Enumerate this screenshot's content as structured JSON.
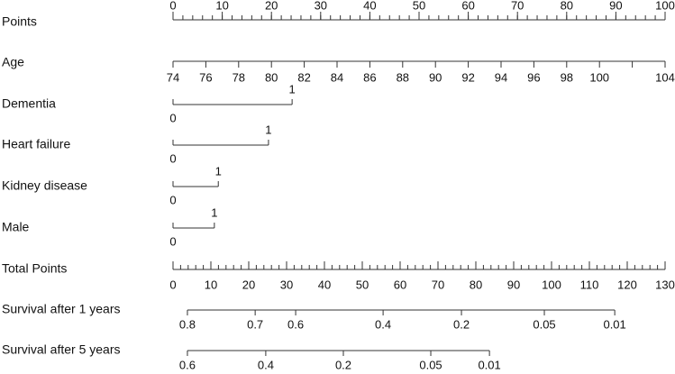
{
  "chart_data": {
    "type": "nomogram",
    "points": {
      "label": "Points",
      "xlim": [
        0,
        100
      ],
      "xticks": [
        0,
        10,
        20,
        30,
        40,
        50,
        60,
        70,
        80,
        90,
        100
      ],
      "minor_step": 2
    },
    "predictors": [
      {
        "label": "Age",
        "lim": [
          74,
          104
        ],
        "points": [
          0,
          100
        ],
        "ticks": [
          74,
          76,
          78,
          80,
          82,
          84,
          86,
          88,
          90,
          92,
          94,
          96,
          98,
          100,
          {
            "value": 102,
            "label": null
          },
          104
        ]
      },
      {
        "label": "Dementia",
        "lim": [
          0,
          1
        ],
        "points": [
          0,
          24.2
        ],
        "ticks": [
          0,
          1
        ]
      },
      {
        "label": "Heart failure",
        "lim": [
          0,
          1
        ],
        "points": [
          0,
          19.4
        ],
        "ticks": [
          0,
          1
        ]
      },
      {
        "label": "Kidney disease",
        "lim": [
          0,
          1
        ],
        "points": [
          0,
          9.2
        ],
        "ticks": [
          0,
          1
        ]
      },
      {
        "label": "Male",
        "lim": [
          0,
          1
        ],
        "points": [
          0,
          8.4
        ],
        "ticks": [
          0,
          1
        ]
      }
    ],
    "total": {
      "label": "Total Points",
      "xlim": [
        0,
        130
      ],
      "xticks": [
        0,
        10,
        20,
        30,
        40,
        50,
        60,
        70,
        80,
        90,
        100,
        110,
        120,
        130
      ],
      "minor_step": 2
    },
    "outcomes": [
      {
        "label": "Survival after 1 years",
        "ticks": [
          {
            "value": 0.8,
            "total": 3.8
          },
          {
            "value": 0.7,
            "total": 21.7
          },
          {
            "value": 0.6,
            "total": 32.4
          },
          {
            "value": 0.4,
            "total": 55.5
          },
          {
            "value": 0.2,
            "total": 76.2
          },
          {
            "value": 0.05,
            "total": 98.1
          },
          {
            "value": 0.01,
            "total": 116.7
          }
        ]
      },
      {
        "label": "Survival after 5 years",
        "ticks": [
          {
            "value": 0.6,
            "total": 3.8
          },
          {
            "value": 0.4,
            "total": 24.5
          },
          {
            "value": 0.2,
            "total": 45.0
          },
          {
            "value": 0.05,
            "total": 68.1
          },
          {
            "value": 0.01,
            "total": 83.6
          }
        ]
      }
    ]
  }
}
